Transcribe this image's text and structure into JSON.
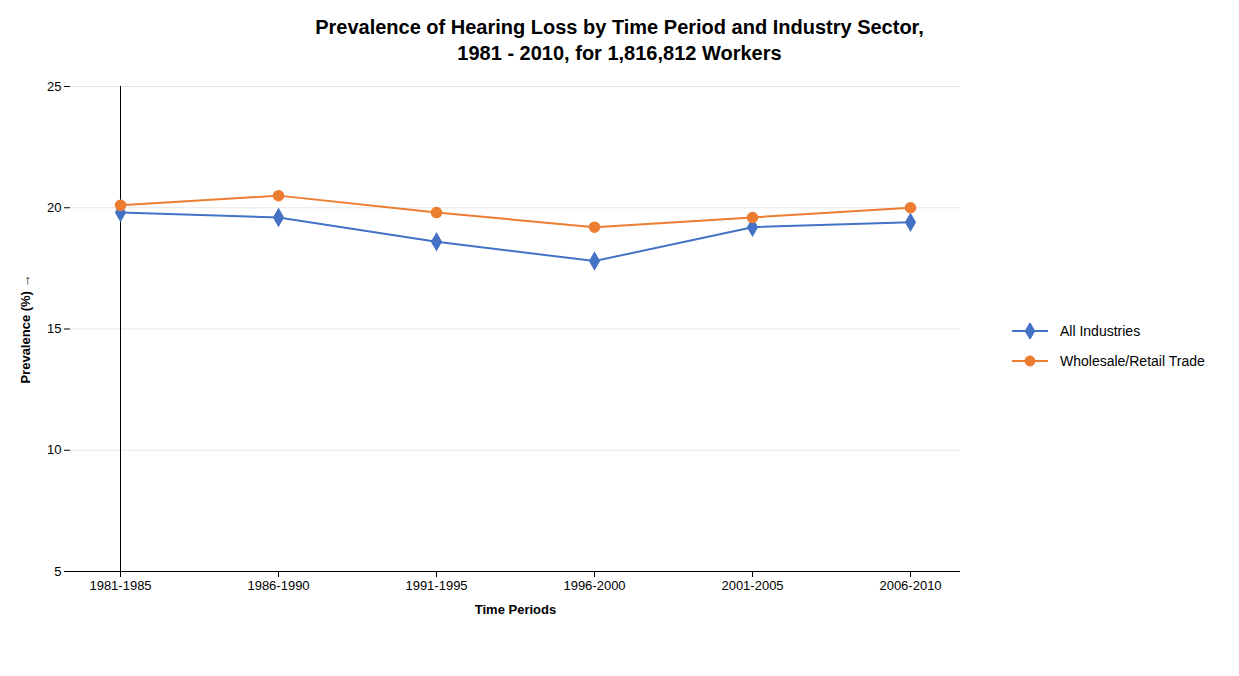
{
  "chart_data": {
    "type": "line",
    "title": "Prevalence of Hearing Loss by Time Period and Industry Sector,",
    "subtitle": "1981 - 2010, for 1,816,812 Workers",
    "xlabel": "Time Periods",
    "ylabel": "Prevalence (%)",
    "categories": [
      "1981-1985",
      "1986-1990",
      "1991-1995",
      "1996-2000",
      "2001-2005",
      "2006-2010"
    ],
    "series": [
      {
        "name": "All Industries",
        "color": "#4472C4",
        "marker": "diamond",
        "values": [
          19.8,
          19.6,
          18.6,
          17.8,
          19.2,
          19.4
        ]
      },
      {
        "name": "Wholesale/Retail Trade",
        "color": "#ED7D31",
        "marker": "circle",
        "values": [
          20.1,
          20.5,
          19.8,
          19.2,
          19.6,
          20.0
        ]
      }
    ],
    "ylim": [
      5,
      25
    ],
    "yticks": [
      5,
      10,
      15,
      20,
      25
    ],
    "grid": true,
    "legend": "right"
  }
}
